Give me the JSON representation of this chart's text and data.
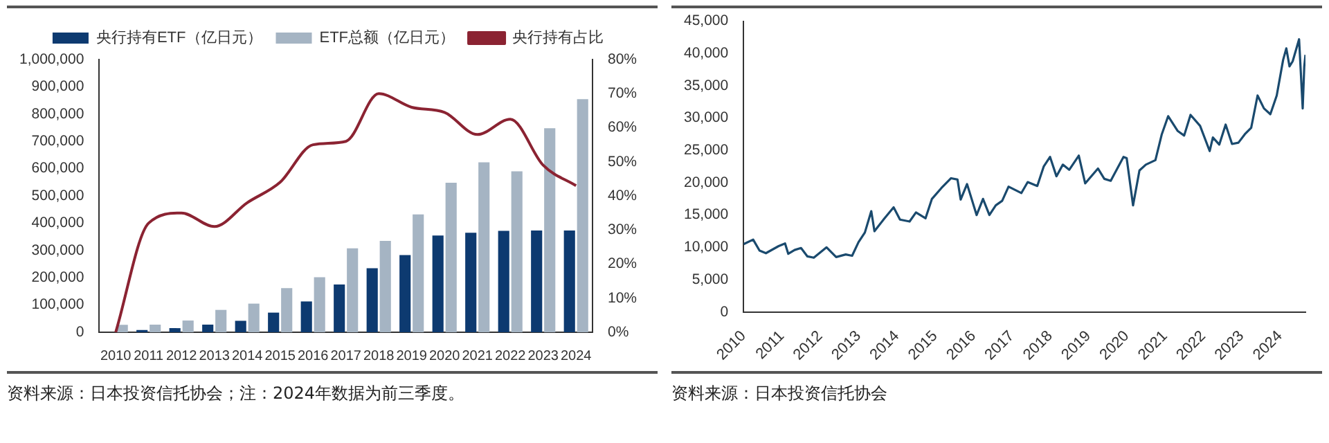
{
  "chart_data": [
    {
      "type": "bar",
      "categories": [
        "2010",
        "2011",
        "2012",
        "2013",
        "2014",
        "2015",
        "2016",
        "2017",
        "2018",
        "2019",
        "2020",
        "2021",
        "2022",
        "2023",
        "2024"
      ],
      "series": [
        {
          "name": "央行持有ETF（亿日元）",
          "color": "#0d3a70",
          "values": [
            0,
            8000,
            15000,
            28000,
            42000,
            72000,
            113000,
            175000,
            235000,
            283000,
            355000,
            365000,
            372000,
            373000,
            373000
          ]
        },
        {
          "name": "ETF总额（亿日元）",
          "color": "#a5b4c3",
          "values": [
            27000,
            28000,
            43000,
            82000,
            105000,
            162000,
            202000,
            308000,
            335000,
            432000,
            548000,
            623000,
            590000,
            748000,
            855000
          ]
        },
        {
          "name": "央行持有占比",
          "type": "line",
          "axis": "y2",
          "color": "#8b2332",
          "values": [
            0,
            32,
            35,
            31,
            38,
            44,
            55,
            56,
            70,
            66,
            64.5,
            58,
            62.5,
            49,
            43
          ]
        }
      ],
      "ylim": [
        0,
        1000000
      ],
      "yticks": [
        0,
        {
          "value": 100000,
          "label": "100,000"
        },
        {
          "value": 200000,
          "label": "200,000"
        },
        {
          "value": 300000,
          "label": "300,000"
        },
        {
          "value": 400000,
          "label": "400,000"
        },
        {
          "value": 500000,
          "label": "500,000"
        },
        {
          "value": 600000,
          "label": "600,000"
        },
        {
          "value": 700000,
          "label": "700,000"
        },
        {
          "value": 800000,
          "label": "800,000"
        },
        {
          "value": 900000,
          "label": "900,000"
        },
        {
          "value": 1000000,
          "label": "1,000,000"
        }
      ],
      "y2lim": [
        0,
        80
      ],
      "y2ticks": [
        {
          "value": 0,
          "label": "0%"
        },
        {
          "value": 10,
          "label": "10%"
        },
        {
          "value": 20,
          "label": "20%"
        },
        {
          "value": 30,
          "label": "30%"
        },
        {
          "value": 40,
          "label": "40%"
        },
        {
          "value": 50,
          "label": "50%"
        },
        {
          "value": 60,
          "label": "60%"
        },
        {
          "value": 70,
          "label": "70%"
        },
        {
          "value": 80,
          "label": "80%"
        }
      ],
      "grid": false,
      "legend": "top",
      "marker": "none",
      "annotations": [
        "资料来源：日本投资信托协会；注：2024年数据为前三季度。"
      ]
    },
    {
      "type": "line",
      "x": [
        "2010-01",
        "2010-04",
        "2010-06",
        "2010-08",
        "2010-12",
        "2011-02",
        "2011-03",
        "2011-05",
        "2011-07",
        "2011-09",
        "2011-11",
        "2012-03",
        "2012-06",
        "2012-09",
        "2012-11",
        "2013-01",
        "2013-03",
        "2013-05",
        "2013-06",
        "2013-09",
        "2013-12",
        "2014-02",
        "2014-05",
        "2014-07",
        "2014-10",
        "2014-12",
        "2015-03",
        "2015-06",
        "2015-08",
        "2015-09",
        "2015-11",
        "2016-02",
        "2016-04",
        "2016-06",
        "2016-08",
        "2016-10",
        "2016-12",
        "2017-04",
        "2017-06",
        "2017-09",
        "2017-11",
        "2018-01",
        "2018-03",
        "2018-05",
        "2018-07",
        "2018-10",
        "2018-12",
        "2019-04",
        "2019-06",
        "2019-08",
        "2019-12",
        "2020-01",
        "2020-03",
        "2020-05",
        "2020-07",
        "2020-10",
        "2020-12",
        "2021-02",
        "2021-05",
        "2021-07",
        "2021-09",
        "2021-12",
        "2022-03",
        "2022-04",
        "2022-06",
        "2022-08",
        "2022-10",
        "2022-12",
        "2023-02",
        "2023-04",
        "2023-06",
        "2023-08",
        "2023-10",
        "2023-12",
        "2024-02",
        "2024-03",
        "2024-04",
        "2024-05",
        "2024-07",
        "2024-08-05",
        "2024-08-20",
        "2024-09"
      ],
      "series": [
        {
          "color": "#1a4a6e",
          "values": [
            10500,
            11200,
            9500,
            9100,
            10200,
            10600,
            9000,
            9600,
            9900,
            8600,
            8400,
            10000,
            8500,
            8900,
            8700,
            10800,
            12300,
            15600,
            12500,
            14400,
            16200,
            14300,
            14000,
            15400,
            14500,
            17500,
            19200,
            20700,
            20500,
            17400,
            19800,
            15000,
            17500,
            15000,
            16500,
            17200,
            19400,
            18400,
            20100,
            19500,
            22500,
            24000,
            21000,
            22800,
            22000,
            24200,
            19900,
            22200,
            20600,
            20300,
            24000,
            23800,
            16500,
            21900,
            22800,
            23500,
            27500,
            30300,
            28000,
            27300,
            30500,
            28800,
            24900,
            27000,
            25900,
            29000,
            26000,
            26200,
            27500,
            28500,
            33500,
            31500,
            30600,
            33500,
            39000,
            40800,
            38000,
            38800,
            42200,
            31500,
            38000,
            39800
          ]
        }
      ],
      "xlim": [
        "2010",
        "2024-09"
      ],
      "xticks": [
        "2010",
        "2011",
        "2012",
        "2013",
        "2014",
        "2015",
        "2016",
        "2017",
        "2018",
        "2019",
        "2020",
        "2021",
        "2022",
        "2023",
        "2024"
      ],
      "ylim": [
        0,
        45000
      ],
      "yticks": [
        0,
        {
          "value": 5000,
          "label": "5,000"
        },
        {
          "value": 10000,
          "label": "10,000"
        },
        {
          "value": 15000,
          "label": "15,000"
        },
        {
          "value": 20000,
          "label": "20,000"
        },
        {
          "value": 25000,
          "label": "25,000"
        },
        {
          "value": 30000,
          "label": "30,000"
        },
        {
          "value": 35000,
          "label": "35,000"
        },
        {
          "value": 40000,
          "label": "40,000"
        },
        {
          "value": 45000,
          "label": "45,000"
        }
      ],
      "grid": false,
      "legend": false,
      "marker": "none",
      "annotations": [
        "资料来源：日本投资信托协会"
      ]
    }
  ]
}
